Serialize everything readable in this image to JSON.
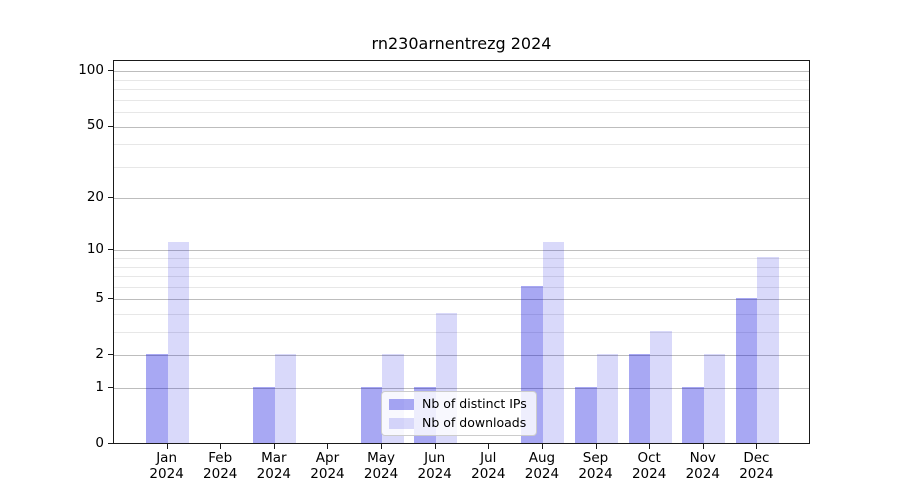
{
  "title": "rn230arnentrezg 2024",
  "colors": {
    "distinct_ips_bar": "rgba(0,0,220,0.34)",
    "downloads_bar": "rgba(0,0,220,0.15)",
    "major_gridline": "#bdbdbd",
    "minor_gridline": "#e7e7e7",
    "axis": "#1a1a1a",
    "legend_border": "#cccccc"
  },
  "legend": {
    "items": [
      {
        "label": "Nb of distinct IPs",
        "color": "rgba(0,0,220,0.34)"
      },
      {
        "label": "Nb of downloads",
        "color": "rgba(0,0,220,0.15)"
      }
    ]
  },
  "chart_data": {
    "type": "bar",
    "title": "rn230arnentrezg 2024",
    "categories": [
      "Jan 2024",
      "Feb 2024",
      "Mar 2024",
      "Apr 2024",
      "May 2024",
      "Jun 2024",
      "Jul 2024",
      "Aug 2024",
      "Sep 2024",
      "Oct 2024",
      "Nov 2024",
      "Dec 2024"
    ],
    "series": [
      {
        "name": "Nb of distinct IPs",
        "color": "rgba(0,0,220,0.34)",
        "values": [
          2,
          0,
          1,
          0,
          1,
          1,
          0,
          6,
          1,
          2,
          1,
          5
        ]
      },
      {
        "name": "Nb of downloads",
        "color": "rgba(0,0,220,0.15)",
        "values": [
          11,
          0,
          2,
          0,
          2,
          4,
          0,
          11,
          2,
          3,
          2,
          9
        ]
      }
    ],
    "xlabel": "",
    "ylabel": "",
    "yscale": "log1p",
    "ylim": [
      0,
      114
    ],
    "yticks": [
      0,
      1,
      2,
      5,
      10,
      20,
      50,
      100
    ],
    "yticks_minor": [
      3,
      4,
      6,
      7,
      8,
      9,
      30,
      40,
      60,
      70,
      80,
      90
    ],
    "grid": true,
    "legend_position": "lower-center-inside"
  }
}
